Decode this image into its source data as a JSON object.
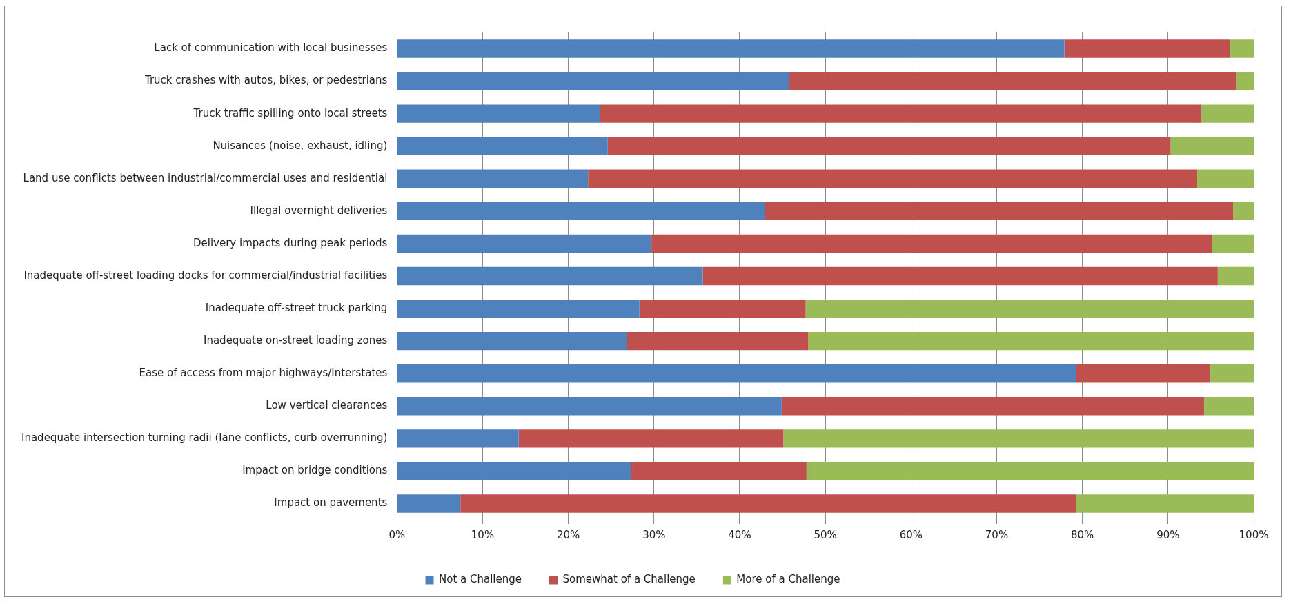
{
  "chart_data": {
    "type": "bar",
    "orientation": "horizontal",
    "stacked": true,
    "categories": [
      "Lack of communication with local businesses",
      "Truck crashes with autos, bikes, or pedestrians",
      "Truck traffic spilling onto local streets",
      "Nuisances (noise, exhaust, idling)",
      "Land use conflicts between industrial/commercial uses and residential",
      "Illegal overnight deliveries",
      "Delivery impacts during peak periods",
      "Inadequate off-street loading docks for commercial/industrial facilities",
      "Inadequate off-street truck parking",
      "Inadequate on-street loading zones",
      "Ease of access from major highways/Interstates",
      "Low vertical clearances",
      "Inadequate intersection turning radii (lane conflicts, curb overrunning)",
      "Impact on bridge conditions",
      "Impact on pavements"
    ],
    "series": [
      {
        "name": "Not a Challenge",
        "color": "#4f81bd",
        "values": [
          77.9,
          45.8,
          23.7,
          24.6,
          22.3,
          42.9,
          29.7,
          35.7,
          28.3,
          26.8,
          79.3,
          44.9,
          14.2,
          27.3,
          7.4
        ]
      },
      {
        "name": "Somewhat of a Challenge",
        "color": "#c0504d",
        "values": [
          19.3,
          52.2,
          70.2,
          65.7,
          71.1,
          54.7,
          65.4,
          60.1,
          19.4,
          21.2,
          15.6,
          49.3,
          30.9,
          20.5,
          71.9
        ]
      },
      {
        "name": "More of a Challenge",
        "color": "#9bbb59",
        "values": [
          2.8,
          2.0,
          6.1,
          9.7,
          6.6,
          2.4,
          4.9,
          4.2,
          52.3,
          52.0,
          5.1,
          5.8,
          54.9,
          52.2,
          20.7
        ]
      }
    ],
    "xlim": [
      0,
      100
    ],
    "xticks": [
      {
        "value": 0,
        "label": "0%"
      },
      {
        "value": 10,
        "label": "10%"
      },
      {
        "value": 20,
        "label": "20%"
      },
      {
        "value": 30,
        "label": "30%"
      },
      {
        "value": 40,
        "label": "40%"
      },
      {
        "value": 50,
        "label": "50%"
      },
      {
        "value": 60,
        "label": "60%"
      },
      {
        "value": 70,
        "label": "70%"
      },
      {
        "value": 80,
        "label": "80%"
      },
      {
        "value": 90,
        "label": "90%"
      },
      {
        "value": 100,
        "label": "100%"
      }
    ],
    "grid": "x",
    "legend": "bottom"
  }
}
